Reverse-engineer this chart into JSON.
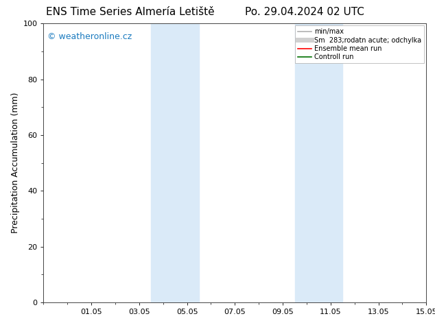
{
  "title_left": "ENS Time Series Almería Letiště",
  "title_right": "Po. 29.04.2024 02 UTC",
  "ylabel": "Precipitation Accumulation (mm)",
  "watermark": "© weatheronline.cz",
  "watermark_color": "#1a7abf",
  "ylim": [
    0,
    100
  ],
  "yticks": [
    0,
    20,
    40,
    60,
    80,
    100
  ],
  "xlim": [
    0,
    16
  ],
  "xtick_labels": [
    "01.05",
    "03.05",
    "05.05",
    "07.05",
    "09.05",
    "11.05",
    "13.05",
    "15.05"
  ],
  "xtick_positions": [
    2,
    4,
    6,
    8,
    10,
    12,
    14,
    16
  ],
  "shaded_regions": [
    {
      "xmin": 4.5,
      "xmax": 6.5
    },
    {
      "xmin": 10.5,
      "xmax": 12.5
    }
  ],
  "shade_color": "#daeaf8",
  "shade_alpha": 1.0,
  "bg_color": "#ffffff",
  "legend_entries": [
    {
      "label": "min/max",
      "color": "#b0b0b0",
      "lw": 1.2,
      "ls": "-"
    },
    {
      "label": "Sm  283;rodatn acute; odchylka",
      "color": "#d0d0d0",
      "lw": 5,
      "ls": "-"
    },
    {
      "label": "Ensemble mean run",
      "color": "#ff0000",
      "lw": 1.2,
      "ls": "-"
    },
    {
      "label": "Controll run",
      "color": "#007000",
      "lw": 1.2,
      "ls": "-"
    }
  ],
  "title_fontsize": 11,
  "tick_fontsize": 8,
  "ylabel_fontsize": 9,
  "watermark_fontsize": 9,
  "legend_fontsize": 7
}
